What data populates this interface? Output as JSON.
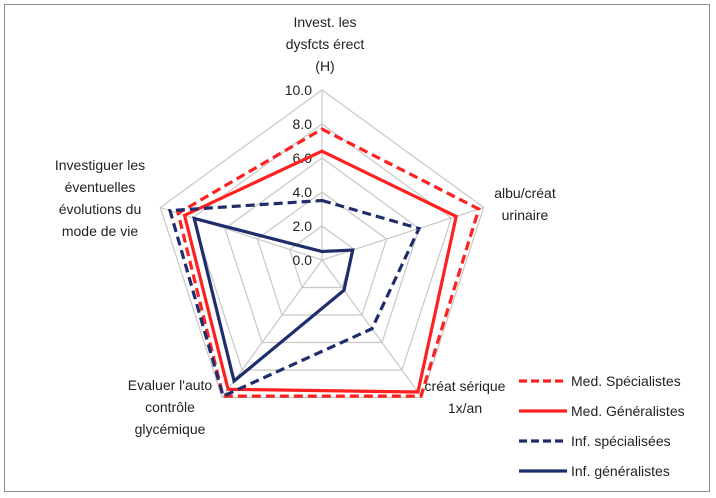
{
  "chart_data": {
    "type": "radar",
    "axes": [
      {
        "label_lines": [
          "Invest. les",
          "dysfcts érect",
          "(H)"
        ]
      },
      {
        "label_lines": [
          "albu/créat",
          "urinaire"
        ]
      },
      {
        "label_lines": [
          "créat sérique",
          "1x/an"
        ]
      },
      {
        "label_lines": [
          "Evaluer l'auto",
          "contrôle",
          "glycémique"
        ]
      },
      {
        "label_lines": [
          "Investiguer les",
          "éventuelles",
          "évolutions du",
          "mode de vie"
        ]
      }
    ],
    "rlim": [
      0,
      10
    ],
    "ticks": [
      "0.0",
      "2.0",
      "4.0",
      "6.0",
      "8.0",
      "10.0"
    ],
    "grid": true,
    "legend_position": "right",
    "series": [
      {
        "name": "Med. Spécialistes",
        "color": "#ff2020",
        "dash": true,
        "values": [
          7.7,
          9.7,
          9.9,
          9.9,
          8.9
        ]
      },
      {
        "name": "Med. Généralistes",
        "color": "#ff2020",
        "dash": false,
        "values": [
          6.4,
          8.3,
          9.6,
          9.4,
          8.5
        ]
      },
      {
        "name": "Inf. spécialisées",
        "color": "#1f2d6b",
        "dash": true,
        "values": [
          3.5,
          6.0,
          5.0,
          9.9,
          9.4
        ]
      },
      {
        "name": "Inf. généralistes",
        "color": "#1f2d6b",
        "dash": false,
        "values": [
          0.5,
          1.9,
          2.2,
          8.8,
          7.9
        ]
      }
    ]
  }
}
